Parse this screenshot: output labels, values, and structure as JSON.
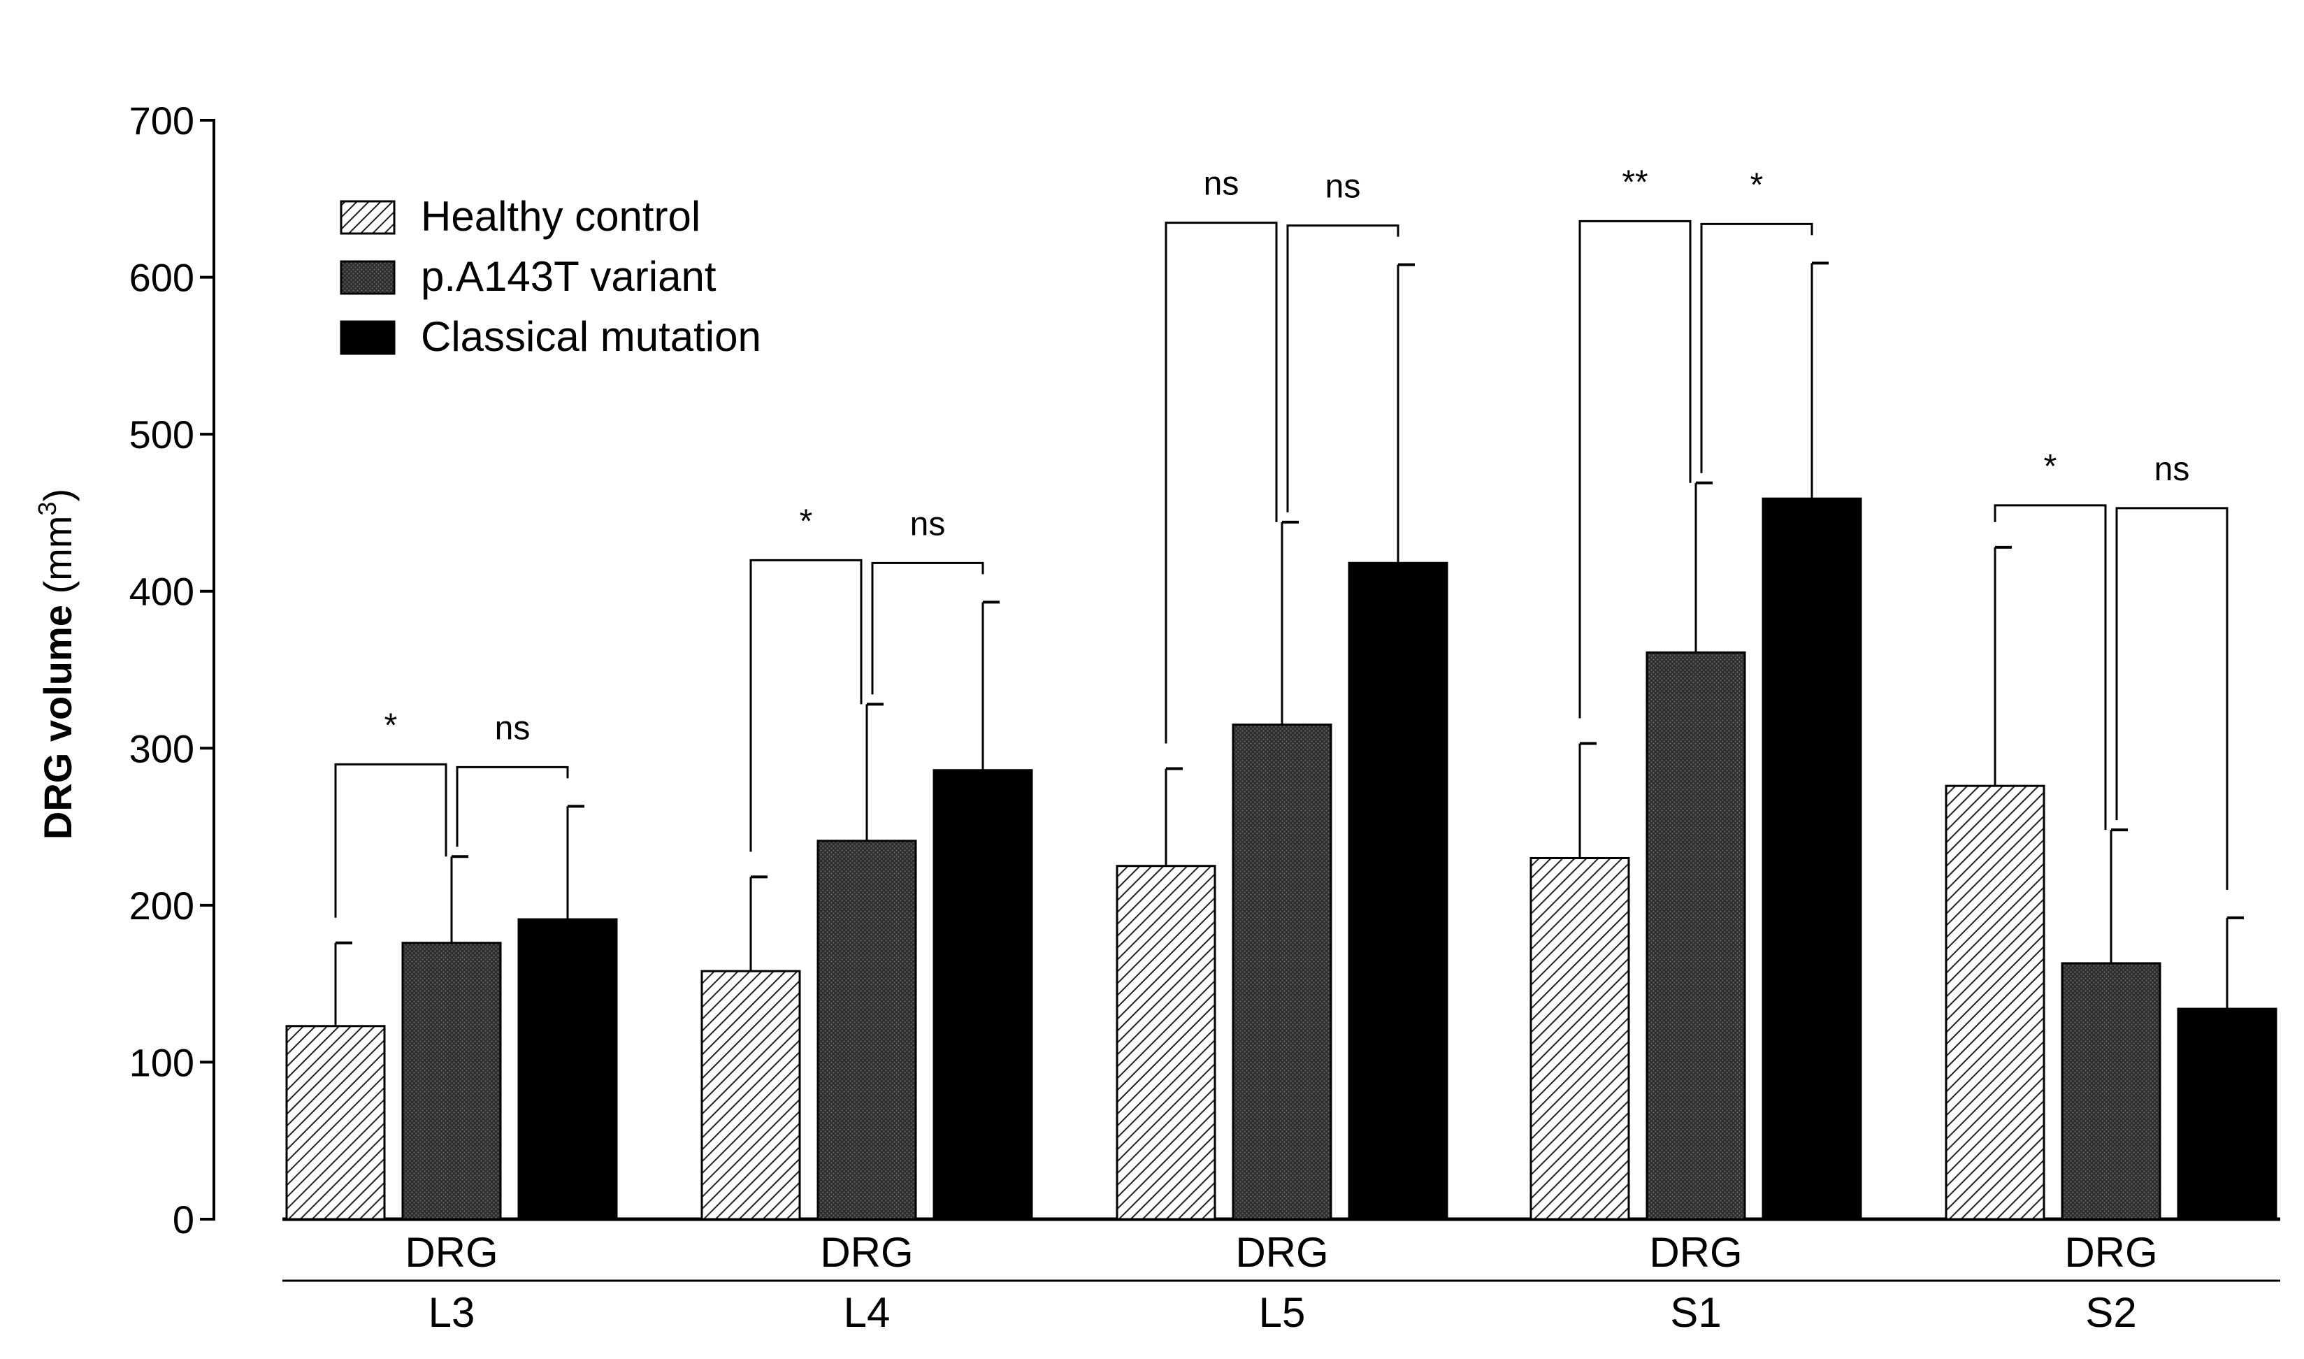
{
  "chart_data": {
    "type": "bar",
    "title": "",
    "ylabel": "DRG volume (mm",
    "ylabel_unit_sup": "3",
    "ylabel_close": ")",
    "ylim": [
      0,
      700
    ],
    "yticks": [
      0,
      100,
      200,
      300,
      400,
      500,
      600,
      700
    ],
    "ytick_labels": [
      "0",
      "100",
      "200",
      "300",
      "400",
      "500",
      "600",
      "700"
    ],
    "categories": [
      "L3",
      "L4",
      "L5",
      "S1",
      "S2"
    ],
    "category_top_label": "DRG",
    "legend_position": "top-left",
    "series": [
      {
        "name": "Healthy control",
        "pattern": "hatched",
        "color": "#ffffff",
        "values": [
          123,
          158,
          225,
          230,
          276
        ],
        "errors": [
          53,
          60,
          62,
          73,
          152
        ]
      },
      {
        "name": "p.A143T variant",
        "pattern": "dotted-dark",
        "color": "#3a3a3a",
        "values": [
          176,
          241,
          315,
          361,
          163
        ],
        "errors": [
          55,
          87,
          129,
          108,
          85
        ]
      },
      {
        "name": "Classical mutation",
        "pattern": "solid",
        "color": "#000000",
        "values": [
          191,
          286,
          418,
          459,
          134
        ],
        "errors": [
          72,
          107,
          190,
          150,
          58
        ]
      }
    ],
    "significance": [
      {
        "category": "L3",
        "comparison": "Healthy control vs p.A143T variant",
        "label": "*"
      },
      {
        "category": "L3",
        "comparison": "p.A143T variant vs Classical mutation",
        "label": "ns"
      },
      {
        "category": "L4",
        "comparison": "Healthy control vs p.A143T variant",
        "label": "*"
      },
      {
        "category": "L4",
        "comparison": "p.A143T variant vs Classical mutation",
        "label": "ns"
      },
      {
        "category": "L5",
        "comparison": "Healthy control vs p.A143T variant",
        "label": "ns"
      },
      {
        "category": "L5",
        "comparison": "p.A143T variant vs Classical mutation",
        "label": "ns"
      },
      {
        "category": "S1",
        "comparison": "Healthy control vs p.A143T variant",
        "label": "**"
      },
      {
        "category": "S1",
        "comparison": "p.A143T variant vs Classical mutation",
        "label": "*"
      },
      {
        "category": "S2",
        "comparison": "Healthy control vs p.A143T variant",
        "label": "*"
      },
      {
        "category": "S2",
        "comparison": "p.A143T variant vs Classical mutation",
        "label": "ns"
      }
    ]
  }
}
